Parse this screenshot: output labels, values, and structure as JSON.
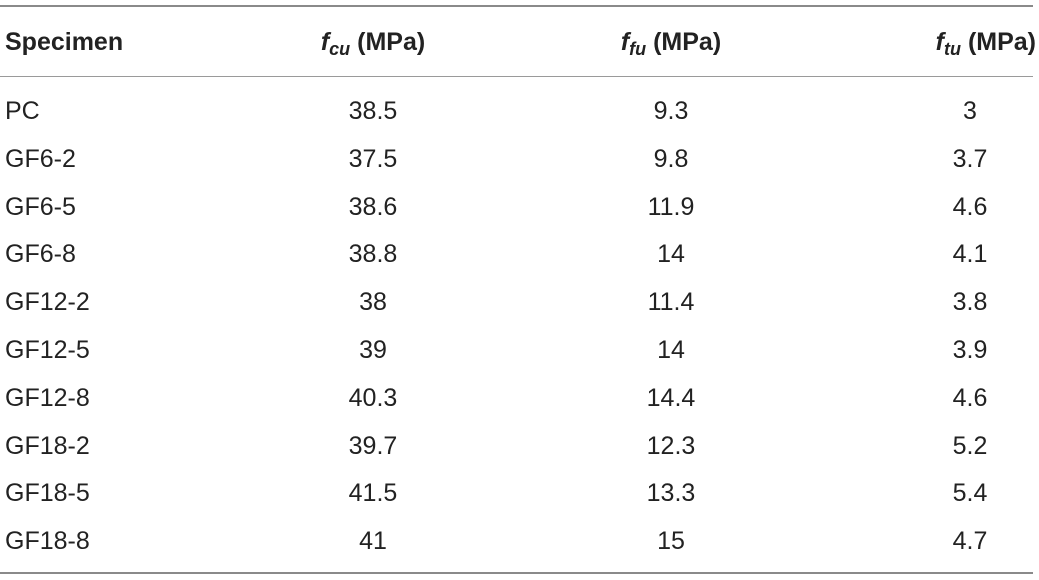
{
  "table": {
    "headers": {
      "specimen": "Specimen",
      "fcu_symbol": "f",
      "fcu_sub": "cu",
      "fcu_unit": " (MPa)",
      "ffu_symbol": "f",
      "ffu_sub": "fu",
      "ffu_unit": " (MPa)",
      "ftu_symbol": "f",
      "ftu_sub": "tu",
      "ftu_unit": " (MPa)"
    },
    "rows": [
      [
        "PC",
        "38.5",
        "9.3",
        "3"
      ],
      [
        "GF6-2",
        "37.5",
        "9.8",
        "3.7"
      ],
      [
        "GF6-5",
        "38.6",
        "11.9",
        "4.6"
      ],
      [
        "GF6-8",
        "38.8",
        "14",
        "4.1"
      ],
      [
        "GF12-2",
        "38",
        "11.4",
        "3.8"
      ],
      [
        "GF12-5",
        "39",
        "14",
        "3.9"
      ],
      [
        "GF12-8",
        "40.3",
        "14.4",
        "4.6"
      ],
      [
        "GF18-2",
        "39.7",
        "12.3",
        "5.2"
      ],
      [
        "GF18-5",
        "41.5",
        "13.3",
        "5.4"
      ],
      [
        "GF18-8",
        "41",
        "15",
        "4.7"
      ]
    ]
  }
}
